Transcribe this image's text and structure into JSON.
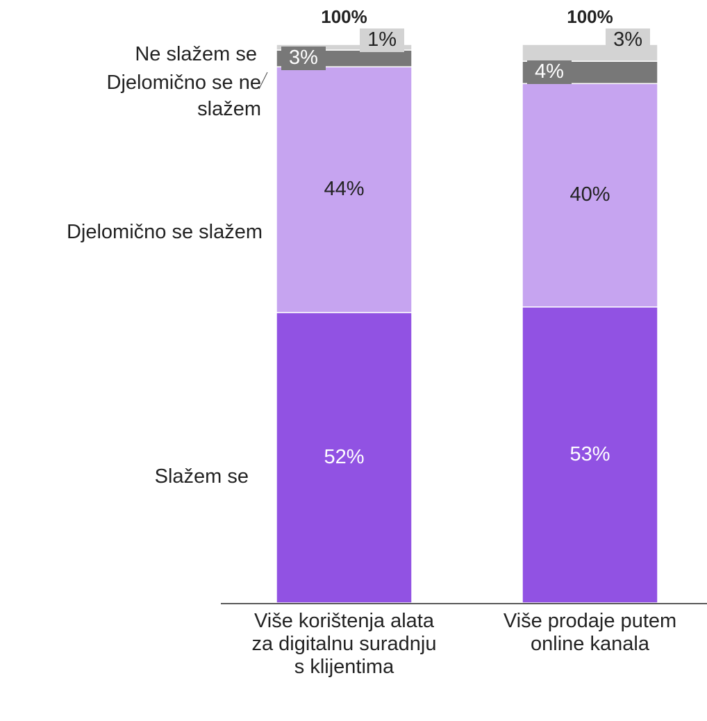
{
  "chart_data": {
    "type": "stacked_bar",
    "categories": [
      "Više korištenja alata za digitalnu suradnju s klijentima",
      "Više prodaje putem online kanala"
    ],
    "series": [
      {
        "name": "Slažem se",
        "color": "#9152e3",
        "values": [
          52,
          53
        ],
        "value_labels": [
          "52%",
          "53%"
        ]
      },
      {
        "name": "Djelomično se slažem",
        "color": "#c6a4f0",
        "values": [
          44,
          40
        ],
        "value_labels": [
          "44%",
          "40%"
        ]
      },
      {
        "name": "Djelomično se ne slažem",
        "color": "#787878",
        "values": [
          3,
          4
        ],
        "value_labels": [
          "3%",
          "4%"
        ]
      },
      {
        "name": "Ne slažem se",
        "color": "#d3d3d3",
        "values": [
          1,
          3
        ],
        "value_labels": [
          "1%",
          "3%"
        ]
      }
    ],
    "totals": [
      100,
      100
    ],
    "total_labels": [
      "100%",
      "100%"
    ],
    "ylim": [
      0,
      100
    ]
  }
}
